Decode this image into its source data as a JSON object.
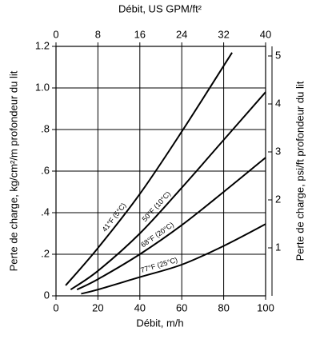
{
  "chart_data": {
    "type": "line",
    "xlabel": "Débit, m/h",
    "x2label": "Débit, US GPM/ft²",
    "ylabel": "Perte de charge, kg/cm²/m profondeur du lit",
    "y2label": "Perte de charge, psi/ft profondeur du lit",
    "xlim": [
      0,
      100
    ],
    "xticks": [
      0,
      20,
      40,
      60,
      80,
      100
    ],
    "x2lim": [
      0,
      40
    ],
    "x2ticks": [
      0,
      8,
      16,
      24,
      32,
      40
    ],
    "ylim": [
      0,
      1.2
    ],
    "yticks": [
      0,
      {
        "value": 0.2,
        "label": ".2"
      },
      {
        "value": 0.4,
        "label": ".4"
      },
      {
        "value": 0.6,
        "label": ".6"
      },
      {
        "value": 0.8,
        "label": ".8"
      },
      {
        "value": 1,
        "label": "1.0"
      },
      1.2
    ],
    "y2lim": [
      0,
      5.2
    ],
    "y2ticks": [
      1,
      2,
      3,
      4,
      5
    ],
    "grid": true,
    "series": [
      {
        "name": "41°F (5°C)",
        "color": "#000000",
        "x": [
          4.6,
          20,
          40,
          60,
          84
        ],
        "values": [
          0.05,
          0.23,
          0.49,
          0.79,
          1.17
        ]
      },
      {
        "name": "50°F (10°C)",
        "color": "#000000",
        "x": [
          7,
          20,
          40,
          60,
          80,
          100
        ],
        "values": [
          0.03,
          0.12,
          0.3,
          0.52,
          0.75,
          0.98
        ]
      },
      {
        "name": "68°F (20°C)",
        "color": "#000000",
        "x": [
          10,
          20,
          40,
          60,
          80,
          100
        ],
        "values": [
          0.03,
          0.08,
          0.2,
          0.34,
          0.5,
          0.665
        ]
      },
      {
        "name": "77°F (25°C)",
        "color": "#000000",
        "x": [
          12,
          20,
          40,
          60,
          80,
          100
        ],
        "values": [
          0.01,
          0.03,
          0.09,
          0.15,
          0.24,
          0.345
        ]
      }
    ]
  }
}
